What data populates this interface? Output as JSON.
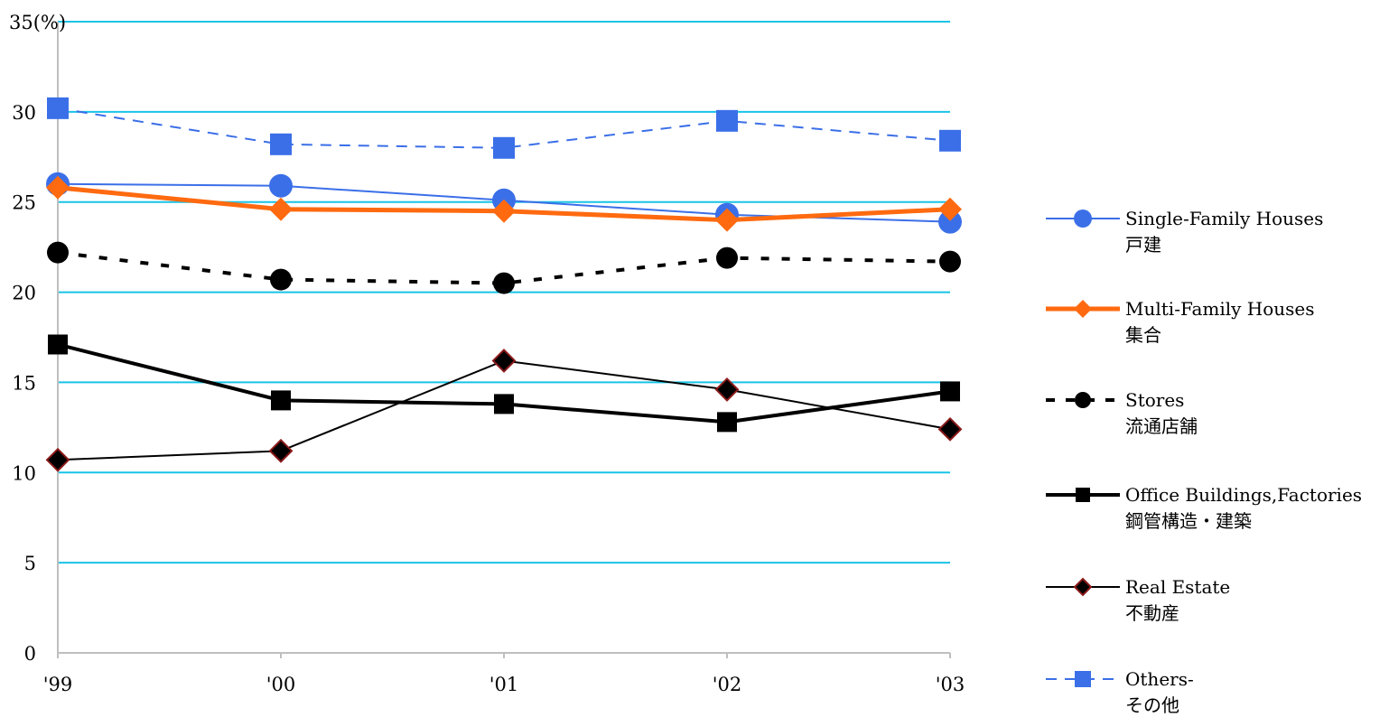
{
  "chart_data": {
    "type": "line",
    "title": "",
    "xlabel": "",
    "ylabel": "",
    "y_top_label": "35(%)",
    "categories": [
      "'99",
      "'00",
      "'01",
      "'02",
      "'03"
    ],
    "ylim": [
      0,
      35
    ],
    "yticks": [
      "0",
      "5",
      "10",
      "15",
      "20",
      "25",
      "30"
    ],
    "grid": true,
    "legend_position": "right",
    "series": [
      {
        "key": "single",
        "name_en": "Single-Family Houses",
        "name_ja": "戸建",
        "values": [
          26.0,
          25.9,
          25.1,
          24.3,
          23.9
        ],
        "color": "#3b6fe8",
        "dash": "solid",
        "marker": "circle"
      },
      {
        "key": "multi",
        "name_en": "Multi-Family Houses",
        "name_ja": "集合",
        "values": [
          25.8,
          24.6,
          24.5,
          24.0,
          24.6
        ],
        "color": "#ff6a10",
        "dash": "solid",
        "marker": "diamond"
      },
      {
        "key": "stores",
        "name_en": "Stores",
        "name_ja": "流通店舗",
        "values": [
          22.2,
          20.7,
          20.5,
          21.9,
          21.7
        ],
        "color": "#000000",
        "dash": "dotted",
        "marker": "circle"
      },
      {
        "key": "office",
        "name_en": "Office Buildings,Factories",
        "name_ja": "鋼管構造・建築",
        "values": [
          17.1,
          14.0,
          13.8,
          12.8,
          14.5
        ],
        "color": "#000000",
        "dash": "solid",
        "marker": "square"
      },
      {
        "key": "realestate",
        "name_en": "Real Estate",
        "name_ja": "不動産",
        "values": [
          10.7,
          11.2,
          16.2,
          14.6,
          12.4
        ],
        "color": "#000000",
        "marker_edge": "#8b1a1a",
        "dash": "solid",
        "marker": "diamond"
      },
      {
        "key": "others",
        "name_en": "Others-",
        "name_ja": "その他",
        "values": [
          30.2,
          28.2,
          28.0,
          29.5,
          28.4
        ],
        "color": "#3b6fe8",
        "dash": "dashed",
        "marker": "square"
      }
    ]
  }
}
